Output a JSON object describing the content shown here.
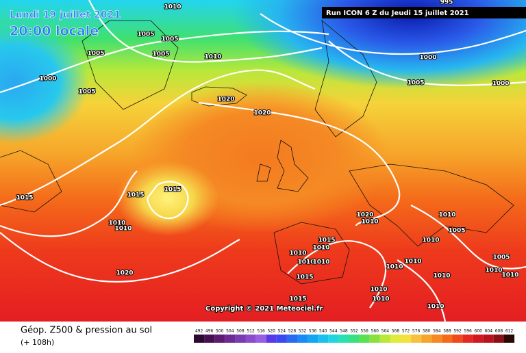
{
  "header": {
    "date": "Lundi 19 juillet 2021",
    "time": "20:00 locale",
    "run": "Run ICON 6 Z du Jeudi 15 juillet 2021"
  },
  "copyright": "Copyright © 2021 Meteociel.fr",
  "footer": {
    "title": "Géop. Z500 & pression au sol",
    "lead": "(+ 108h)"
  },
  "scale": [
    492,
    496,
    500,
    504,
    508,
    512,
    516,
    520,
    524,
    528,
    532,
    536,
    540,
    544,
    548,
    552,
    556,
    560,
    564,
    568,
    572,
    576,
    580,
    584,
    588,
    592,
    596,
    600,
    604,
    608,
    612
  ],
  "isobar_labels": [
    "1010",
    "1005",
    "1005",
    "1005",
    "1005",
    "1010",
    "1000",
    "1005",
    "1020",
    "1020",
    "995",
    "1000",
    "1005",
    "1000",
    "1015",
    "1015",
    "1015",
    "1010",
    "1010",
    "1020",
    "1010",
    "1010",
    "1005",
    "1015",
    "1010",
    "1010",
    "1010",
    "1010",
    "1010",
    "1010",
    "1010",
    "1020",
    "1015",
    "1015",
    "1010",
    "1010",
    "1010",
    "1005",
    "1010",
    "1010",
    "1010"
  ]
}
